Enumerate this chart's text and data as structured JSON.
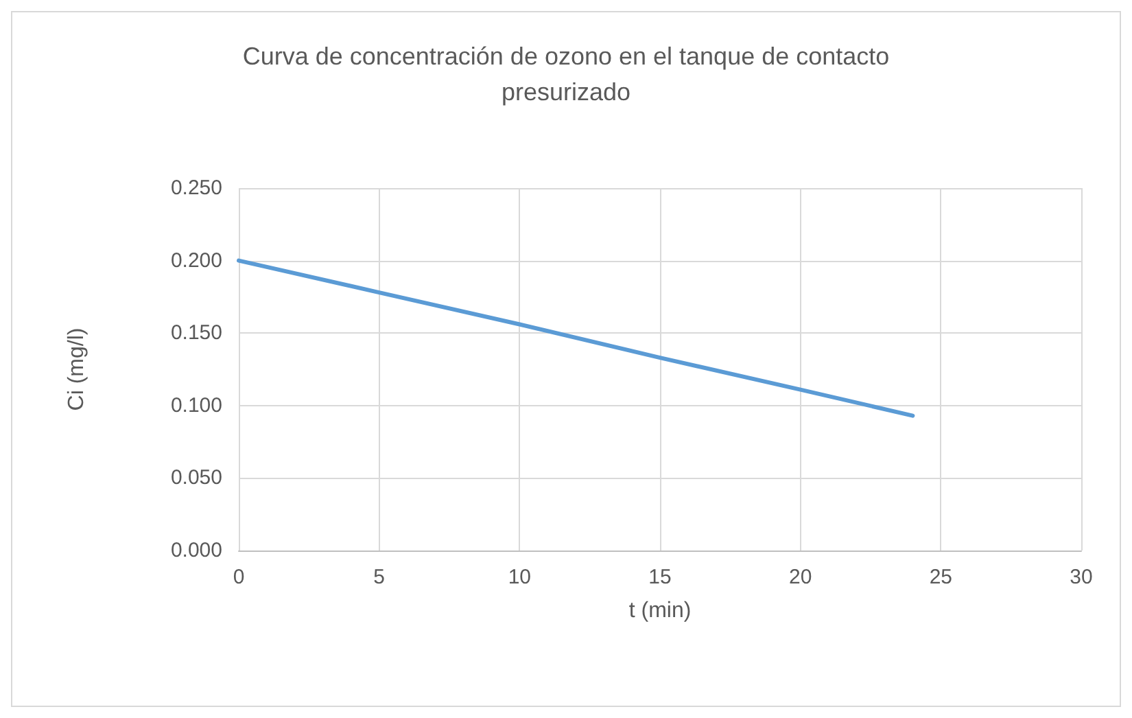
{
  "chart_data": {
    "type": "line",
    "title": "Curva de concentración de ozono en el tanque de contacto\npresurizado",
    "xlabel": "t (min)",
    "ylabel": "Ci (mg/l)",
    "x": [
      0,
      5,
      10,
      15,
      20,
      24
    ],
    "series": [
      {
        "color": "#5b9bd5",
        "values": [
          0.2,
          0.178,
          0.156,
          0.133,
          0.111,
          0.093
        ]
      }
    ],
    "xlim": [
      0,
      30
    ],
    "xticks": [
      0,
      5,
      10,
      15,
      20,
      25,
      30
    ],
    "ylim": [
      0,
      0.25
    ],
    "yticks": [
      {
        "value": 0,
        "label": "0.000"
      },
      {
        "value": 0.05,
        "label": "0.050"
      },
      {
        "value": 0.1,
        "label": "0.100"
      },
      {
        "value": 0.15,
        "label": "0.150"
      },
      {
        "value": 0.2,
        "label": "0.200"
      },
      {
        "value": 0.25,
        "label": "0.250"
      }
    ],
    "grid": true,
    "marker": "none",
    "line_style": "solid"
  }
}
